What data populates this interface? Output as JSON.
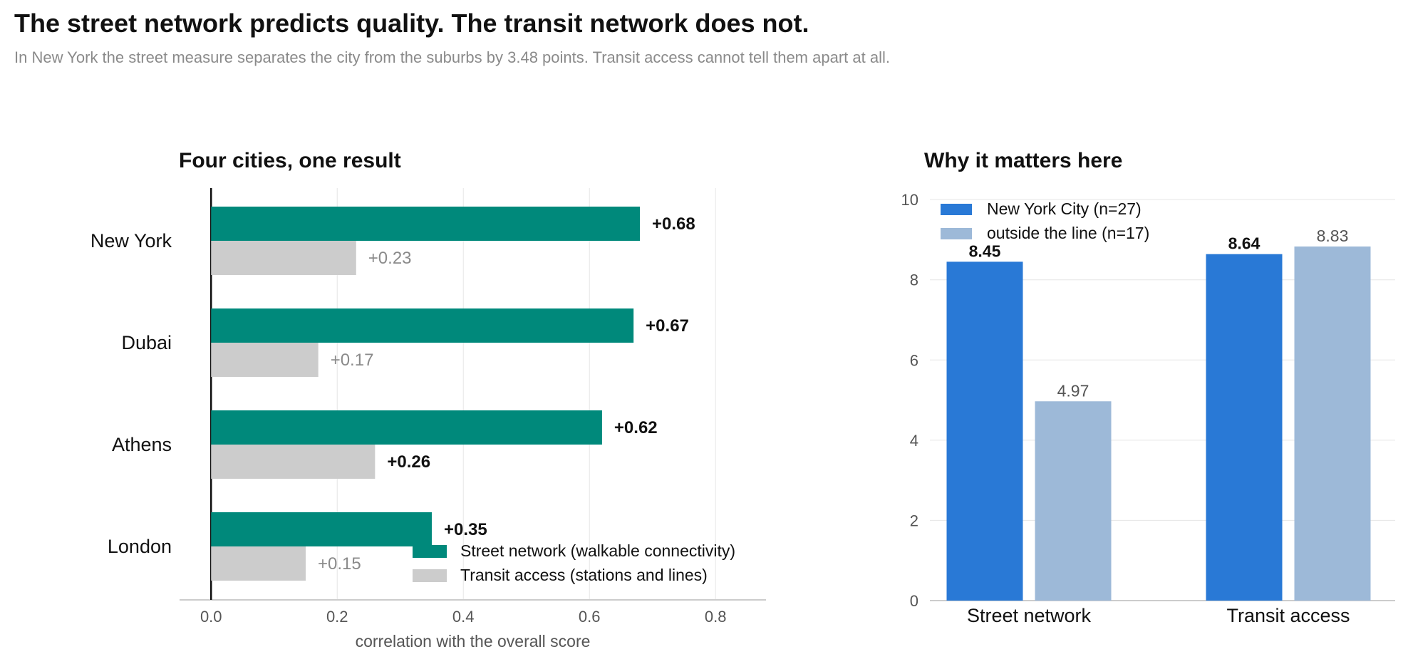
{
  "header": {
    "title": "The street network predicts quality. The transit network does not.",
    "subtitle": "In New York the street measure separates the city from the suburbs by 3.48 points. Transit access cannot tell them apart at all."
  },
  "colors": {
    "street": "#00897b",
    "transit": "#cccccc",
    "nyc": "#2979d6",
    "outside": "#9db9d8",
    "axis": "#555555",
    "grid": "#e6e6e6"
  },
  "chart_data": [
    {
      "type": "bar",
      "orientation": "horizontal",
      "title": "Four cities, one result",
      "categories": [
        "New York",
        "Dubai",
        "Athens",
        "London"
      ],
      "series": [
        {
          "name": "Street network  (walkable connectivity)",
          "values": [
            0.68,
            0.67,
            0.62,
            0.35
          ],
          "labels": [
            "+0.68",
            "+0.67",
            "+0.62",
            "+0.35"
          ],
          "emphasis": [
            true,
            true,
            true,
            true
          ]
        },
        {
          "name": "Transit access  (stations and lines)",
          "values": [
            0.23,
            0.17,
            0.26,
            0.15
          ],
          "labels": [
            "+0.23",
            "+0.17",
            "+0.26",
            "+0.15"
          ],
          "emphasis": [
            false,
            false,
            true,
            false
          ]
        }
      ],
      "xlabel": "correlation with the overall score",
      "xlim": [
        -0.05,
        0.88
      ],
      "xticks": [
        0.0,
        0.2,
        0.4,
        0.6,
        0.8
      ],
      "xtick_labels": [
        "0.0",
        "0.2",
        "0.4",
        "0.6",
        "0.8"
      ],
      "grid": true,
      "legend": "bottom-right"
    },
    {
      "type": "bar",
      "title": "Why it matters here",
      "categories": [
        "Street network",
        "Transit access"
      ],
      "series": [
        {
          "name": "New York City (n=27)",
          "values": [
            8.45,
            8.64
          ],
          "labels": [
            "8.45",
            "8.64"
          ]
        },
        {
          "name": "outside the line (n=17)",
          "values": [
            4.97,
            8.83
          ],
          "labels": [
            "4.97",
            "8.83"
          ]
        }
      ],
      "ylim": [
        0,
        10.5
      ],
      "yticks": [
        0,
        2,
        4,
        6,
        8,
        10
      ],
      "ytick_labels": [
        "0",
        "2",
        "4",
        "6",
        "8",
        "10"
      ],
      "grid": true,
      "legend": "top-left"
    }
  ]
}
